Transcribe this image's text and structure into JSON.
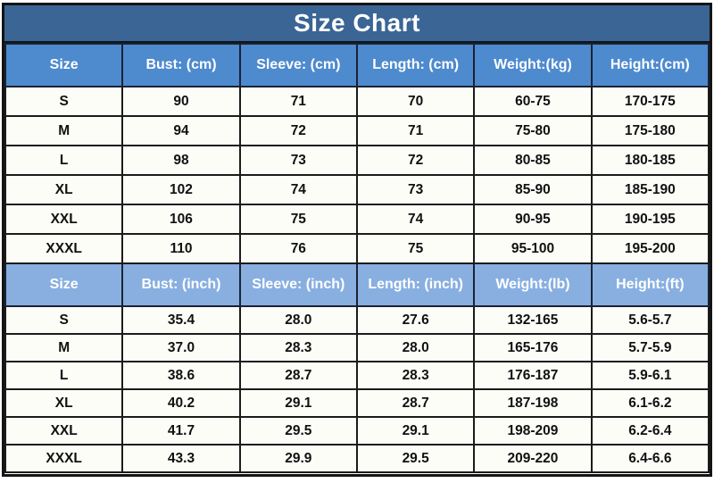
{
  "title": "Size Chart",
  "colors": {
    "title_bg": "#3a6594",
    "header_cm_bg": "#4e8ace",
    "header_inch_bg": "#88afe0",
    "row_bg": "#fdfdf8",
    "border": "#1b1b1b",
    "header_text": "#ffffff",
    "data_text": "#111111"
  },
  "chart_data": [
    {
      "type": "table",
      "title": "Size Chart",
      "unit_system": "metric",
      "columns": [
        "Size",
        "Bust: (cm)",
        "Sleeve: (cm)",
        "Length: (cm)",
        "Weight:(kg)",
        "Height:(cm)"
      ],
      "rows": [
        [
          "S",
          "90",
          "71",
          "70",
          "60-75",
          "170-175"
        ],
        [
          "M",
          "94",
          "72",
          "71",
          "75-80",
          "175-180"
        ],
        [
          "L",
          "98",
          "73",
          "72",
          "80-85",
          "180-185"
        ],
        [
          "XL",
          "102",
          "74",
          "73",
          "85-90",
          "185-190"
        ],
        [
          "XXL",
          "106",
          "75",
          "74",
          "90-95",
          "190-195"
        ],
        [
          "XXXL",
          "110",
          "76",
          "75",
          "95-100",
          "195-200"
        ]
      ]
    },
    {
      "type": "table",
      "title": "Size Chart",
      "unit_system": "imperial",
      "columns": [
        "Size",
        "Bust: (inch)",
        "Sleeve: (inch)",
        "Length: (inch)",
        "Weight:(lb)",
        "Height:(ft)"
      ],
      "rows": [
        [
          "S",
          "35.4",
          "28.0",
          "27.6",
          "132-165",
          "5.6-5.7"
        ],
        [
          "M",
          "37.0",
          "28.3",
          "28.0",
          "165-176",
          "5.7-5.9"
        ],
        [
          "L",
          "38.6",
          "28.7",
          "28.3",
          "176-187",
          "5.9-6.1"
        ],
        [
          "XL",
          "40.2",
          "29.1",
          "28.7",
          "187-198",
          "6.1-6.2"
        ],
        [
          "XXL",
          "41.7",
          "29.5",
          "29.1",
          "198-209",
          "6.2-6.4"
        ],
        [
          "XXXL",
          "43.3",
          "29.9",
          "29.5",
          "209-220",
          "6.4-6.6"
        ]
      ]
    }
  ]
}
